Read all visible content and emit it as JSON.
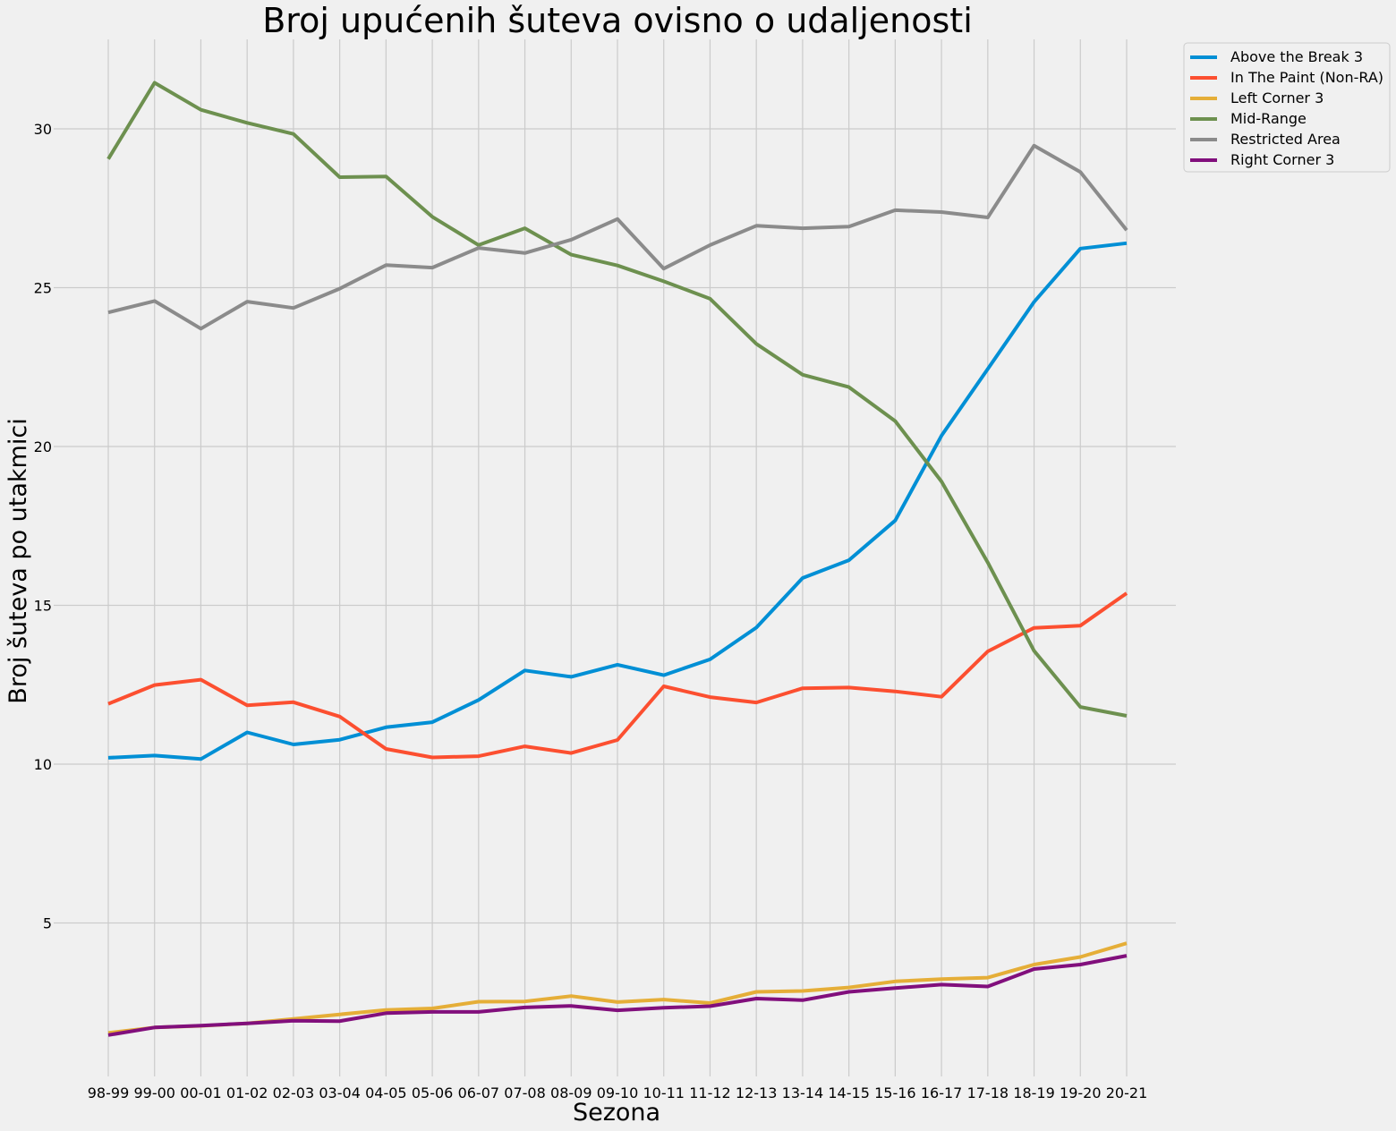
{
  "chart_data": {
    "type": "line",
    "title": "Broj upućenih šuteva ovisno o udaljenosti",
    "xlabel": "Sezona",
    "ylabel": "Broj šuteva po utakmici",
    "categories": [
      "98-99",
      "99-00",
      "00-01",
      "01-02",
      "02-03",
      "03-04",
      "04-05",
      "05-06",
      "06-07",
      "07-08",
      "08-09",
      "09-10",
      "10-11",
      "11-12",
      "12-13",
      "13-14",
      "14-15",
      "15-16",
      "16-17",
      "17-18",
      "18-19",
      "19-20",
      "20-21"
    ],
    "ylim": [
      0.5,
      32.9
    ],
    "yticks": [
      5,
      10,
      15,
      20,
      25,
      30
    ],
    "grid": true,
    "legend": "top-right outside",
    "series": [
      {
        "name": "Above the Break 3",
        "color": "#008fd5",
        "values": [
          10.2,
          10.27,
          10.16,
          11.0,
          10.62,
          10.77,
          11.16,
          11.32,
          12.02,
          12.95,
          12.75,
          13.13,
          12.8,
          13.3,
          14.3,
          15.86,
          16.42,
          17.67,
          20.34,
          22.44,
          24.55,
          26.23,
          26.4
        ]
      },
      {
        "name": "In The Paint (Non-RA)",
        "color": "#fc4f30",
        "values": [
          11.9,
          12.49,
          12.66,
          11.85,
          11.95,
          11.5,
          10.48,
          10.21,
          10.25,
          10.56,
          10.35,
          10.76,
          12.45,
          12.11,
          11.94,
          12.39,
          12.41,
          12.29,
          12.12,
          13.55,
          14.29,
          14.36,
          15.38
        ]
      },
      {
        "name": "Left Corner 3",
        "color": "#e5ae38",
        "values": [
          1.54,
          1.71,
          1.76,
          1.84,
          1.98,
          2.12,
          2.26,
          2.31,
          2.52,
          2.53,
          2.7,
          2.51,
          2.59,
          2.48,
          2.83,
          2.86,
          2.97,
          3.16,
          3.23,
          3.28,
          3.69,
          3.93,
          4.36
        ]
      },
      {
        "name": "Mid-Range",
        "color": "#6d904f",
        "values": [
          29.05,
          31.45,
          30.6,
          30.19,
          29.84,
          28.48,
          28.5,
          27.23,
          26.34,
          26.87,
          26.04,
          25.7,
          25.2,
          24.65,
          23.23,
          22.26,
          21.87,
          20.8,
          18.9,
          16.35,
          13.57,
          11.8,
          11.52
        ]
      },
      {
        "name": "Restricted Area",
        "color": "#8b8b8b",
        "values": [
          24.22,
          24.58,
          23.71,
          24.56,
          24.36,
          24.97,
          25.71,
          25.63,
          26.25,
          26.09,
          26.51,
          27.16,
          25.6,
          26.34,
          26.95,
          26.87,
          26.92,
          27.44,
          27.38,
          27.21,
          29.47,
          28.64,
          26.81
        ]
      },
      {
        "name": "Right Corner 3",
        "color": "#810f7c",
        "values": [
          1.47,
          1.71,
          1.77,
          1.84,
          1.92,
          1.91,
          2.16,
          2.2,
          2.2,
          2.34,
          2.39,
          2.25,
          2.33,
          2.38,
          2.62,
          2.57,
          2.83,
          2.95,
          3.06,
          3.0,
          3.55,
          3.69,
          3.97
        ]
      }
    ]
  }
}
